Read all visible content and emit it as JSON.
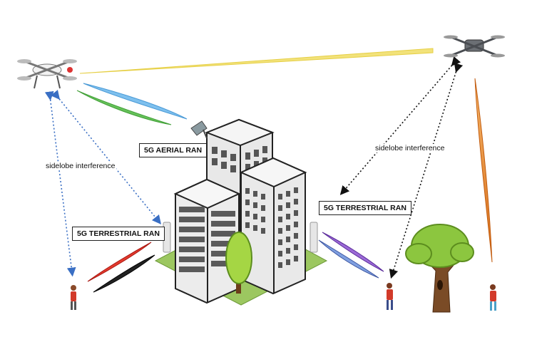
{
  "labels": {
    "aerial_ran": "5G AERIAL RAN",
    "terrestrial_ran_left": "5G TERRESTRIAL RAN",
    "terrestrial_ran_right": "5G TERRESTRIAL RAN",
    "sidelobe_left": "sidelobe interference",
    "sidelobe_right": "sidelobe interference"
  },
  "colors": {
    "beam_yellow": "#f2e27a",
    "beam_blue": "#6fb6e8",
    "beam_green": "#5ab848",
    "beam_red": "#d9241c",
    "beam_black": "#111111",
    "beam_purple": "#7a44b8",
    "beam_steel": "#5b74b8",
    "beam_orange": "#e0852a",
    "dotted_blue": "#3a6fc4",
    "dotted_black": "#111111",
    "ground": "#9cc760",
    "tree_green": "#8cc63f"
  },
  "icons": [
    "drone-quadcopter-icon",
    "drone-foldable-icon",
    "building-icon",
    "base-station-icon",
    "person-icon",
    "tree-icon"
  ]
}
